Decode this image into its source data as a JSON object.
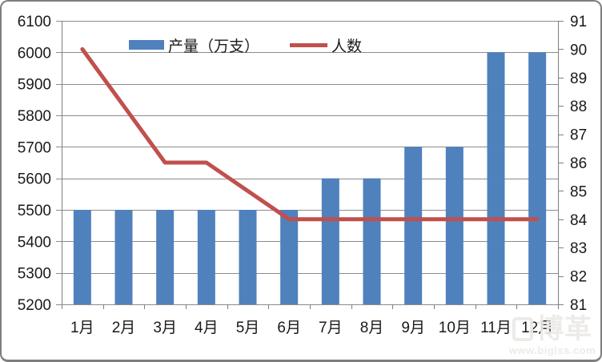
{
  "chart_data": {
    "type": "bar",
    "subtype": "combo-bar-line",
    "title": "",
    "categories": [
      "1月",
      "2月",
      "3月",
      "4月",
      "5月",
      "6月",
      "7月",
      "8月",
      "9月",
      "10月",
      "11月",
      "12月"
    ],
    "series": [
      {
        "name": "产量（万支）",
        "type": "bar",
        "axis": "left",
        "color": "#4F81BD",
        "values": [
          5500,
          5500,
          5500,
          5500,
          5500,
          5500,
          5600,
          5600,
          5700,
          5700,
          6000,
          6000
        ]
      },
      {
        "name": "人数",
        "type": "line",
        "axis": "right",
        "color": "#C0504D",
        "values": [
          90,
          88,
          86,
          86,
          85,
          84,
          84,
          84,
          84,
          84,
          84,
          84
        ]
      }
    ],
    "left_axis": {
      "min": 5200,
      "max": 6100,
      "step": 100,
      "tick_labels": [
        "6100",
        "6000",
        "5900",
        "5800",
        "5700",
        "5600",
        "5500",
        "5400",
        "5300",
        "5200"
      ]
    },
    "right_axis": {
      "min": 81,
      "max": 91,
      "step": 1,
      "tick_labels": [
        "91",
        "90",
        "89",
        "88",
        "87",
        "86",
        "85",
        "84",
        "83",
        "82",
        "81"
      ]
    },
    "grid": true,
    "legend_position": "top-inside",
    "grid_color": "#8C8C8C",
    "axis_color": "#7F7F7F",
    "label_color": "#1A1A1A"
  },
  "watermark": {
    "logo_text": "博革",
    "site_text": "www.biglss.com"
  }
}
